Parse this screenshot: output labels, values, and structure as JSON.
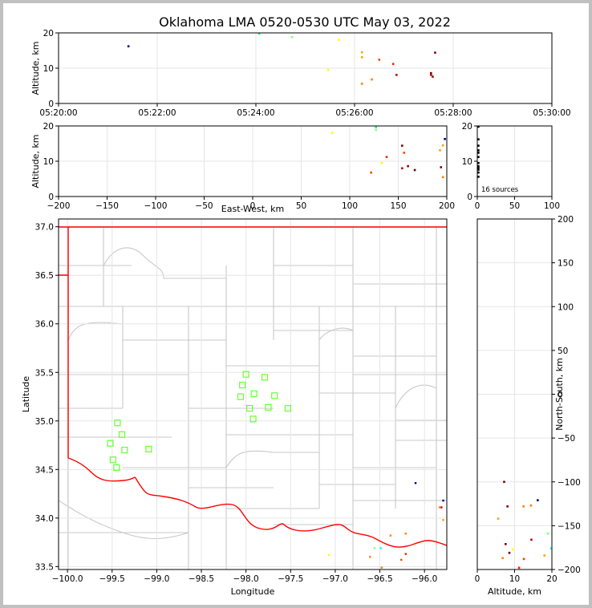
{
  "chart_data": [
    {
      "type": "scatter",
      "panel": "altitude-time",
      "title": "Oklahoma LMA 0520-0530 UTC May 03, 2022",
      "ylabel": "Altitude, km",
      "xlim": [
        "05:20:00",
        "05:30:00"
      ],
      "ylim": [
        0,
        20
      ],
      "xticks": [
        "05:20:00",
        "05:22:00",
        "05:24:00",
        "05:26:00",
        "05:28:00",
        "05:30:00"
      ],
      "yticks": [
        "0",
        "10",
        "20"
      ],
      "grid": true,
      "points": [
        {
          "x": "05:21:25",
          "y": 16.2,
          "color": "#000080"
        },
        {
          "x": "05:24:04",
          "y": 19.8,
          "color": "#00ff80"
        },
        {
          "x": "05:24:44",
          "y": 18.8,
          "color": "#80ff80"
        },
        {
          "x": "05:25:28",
          "y": 9.5,
          "color": "#ffff00"
        },
        {
          "x": "05:25:41",
          "y": 18.0,
          "color": "#ffff00"
        },
        {
          "x": "05:26:09",
          "y": 14.5,
          "color": "#ffa000"
        },
        {
          "x": "05:26:09",
          "y": 13.1,
          "color": "#ffa000"
        },
        {
          "x": "05:26:09",
          "y": 5.6,
          "color": "#ff8000"
        },
        {
          "x": "05:26:21",
          "y": 6.8,
          "color": "#ff8000"
        },
        {
          "x": "05:26:30",
          "y": 12.4,
          "color": "#ff4000"
        },
        {
          "x": "05:26:47",
          "y": 11.2,
          "color": "#ff2000"
        },
        {
          "x": "05:26:51",
          "y": 8.1,
          "color": "#c00000"
        },
        {
          "x": "05:27:33",
          "y": 8.6,
          "color": "#800000"
        },
        {
          "x": "05:27:33",
          "y": 8.1,
          "color": "#c00000"
        },
        {
          "x": "05:27:35",
          "y": 7.6,
          "color": "#a00000"
        },
        {
          "x": "05:27:38",
          "y": 14.4,
          "color": "#800000"
        }
      ]
    },
    {
      "type": "scatter",
      "panel": "altitude-eastwest",
      "xlabel": "East-West, km",
      "ylabel": "Altitude, km",
      "xlim": [
        -200,
        200
      ],
      "ylim": [
        0,
        20
      ],
      "xticks": [
        "−200",
        "−150",
        "−100",
        "−50",
        "0",
        "50",
        "100",
        "150",
        "200"
      ],
      "yticks": [
        "0",
        "10",
        "20"
      ],
      "grid": true,
      "points": [
        {
          "x": 82,
          "y": 18.0,
          "color": "#ffff00"
        },
        {
          "x": 127,
          "y": 19.7,
          "color": "#00ff80"
        },
        {
          "x": 127,
          "y": 18.9,
          "color": "#80ff80"
        },
        {
          "x": 122,
          "y": 6.8,
          "color": "#ff4000"
        },
        {
          "x": 133,
          "y": 9.5,
          "color": "#ffff00"
        },
        {
          "x": 138,
          "y": 11.2,
          "color": "#ff2000"
        },
        {
          "x": 154,
          "y": 14.4,
          "color": "#800000"
        },
        {
          "x": 156,
          "y": 12.4,
          "color": "#ff4000"
        },
        {
          "x": 154,
          "y": 8.0,
          "color": "#c00000"
        },
        {
          "x": 160,
          "y": 8.6,
          "color": "#800000"
        },
        {
          "x": 167,
          "y": 7.5,
          "color": "#600000"
        },
        {
          "x": 193,
          "y": 13.1,
          "color": "#ffa000"
        },
        {
          "x": 196,
          "y": 14.5,
          "color": "#ffa000"
        },
        {
          "x": 198,
          "y": 16.3,
          "color": "#000080"
        },
        {
          "x": 194,
          "y": 8.3,
          "color": "#800000"
        },
        {
          "x": 196,
          "y": 5.5,
          "color": "#ff8000"
        }
      ]
    },
    {
      "type": "histogram",
      "panel": "altitude-histogram",
      "xlim": [
        0,
        100
      ],
      "ylim": [
        0,
        20
      ],
      "xticks": [
        "0",
        "50",
        "100"
      ],
      "yticks": [
        "0",
        "10",
        "20"
      ],
      "note": "16 sources",
      "grid": true,
      "points": [
        {
          "x": 1,
          "y": 19.8,
          "color": "#000000"
        },
        {
          "x": 1,
          "y": 16.2,
          "color": "#000000"
        },
        {
          "x": 1,
          "y": 14.4,
          "color": "#000000"
        },
        {
          "x": 1,
          "y": 13.1,
          "color": "#000000"
        },
        {
          "x": 1,
          "y": 12.4,
          "color": "#000000"
        },
        {
          "x": 1,
          "y": 11.2,
          "color": "#000000"
        },
        {
          "x": 1,
          "y": 9.5,
          "color": "#000000"
        },
        {
          "x": 1,
          "y": 8.6,
          "color": "#000000"
        },
        {
          "x": 1,
          "y": 8.1,
          "color": "#000000"
        },
        {
          "x": 1,
          "y": 7.6,
          "color": "#000000"
        },
        {
          "x": 1,
          "y": 6.8,
          "color": "#000000"
        },
        {
          "x": 1,
          "y": 5.6,
          "color": "#000000"
        }
      ]
    },
    {
      "type": "map",
      "panel": "plan-view",
      "xlabel": "Longitude",
      "ylabel": "Latitude",
      "xlim": [
        -100.1,
        -95.75
      ],
      "ylim": [
        33.47,
        37.08
      ],
      "xticks": [
        "−100.0",
        "−99.5",
        "−99.0",
        "−98.5",
        "−98.0",
        "−97.5",
        "−97.0",
        "−96.5",
        "−96.0"
      ],
      "yticks": [
        "33.5",
        "34.0",
        "34.5",
        "35.0",
        "35.5",
        "36.0",
        "36.5",
        "37.0"
      ],
      "grid": true,
      "stations": [
        {
          "lon": -99.44,
          "lat": 34.98
        },
        {
          "lon": -99.39,
          "lat": 34.86
        },
        {
          "lon": -99.52,
          "lat": 34.77
        },
        {
          "lon": -99.36,
          "lat": 34.7
        },
        {
          "lon": -99.49,
          "lat": 34.6
        },
        {
          "lon": -99.45,
          "lat": 34.52
        },
        {
          "lon": -99.09,
          "lat": 34.71
        },
        {
          "lon": -98.0,
          "lat": 35.48
        },
        {
          "lon": -97.79,
          "lat": 35.45
        },
        {
          "lon": -98.04,
          "lat": 35.37
        },
        {
          "lon": -97.91,
          "lat": 35.28
        },
        {
          "lon": -98.06,
          "lat": 35.25
        },
        {
          "lon": -97.68,
          "lat": 35.26
        },
        {
          "lon": -97.96,
          "lat": 35.13
        },
        {
          "lon": -97.75,
          "lat": 35.14
        },
        {
          "lon": -97.53,
          "lat": 35.13
        },
        {
          "lon": -97.92,
          "lat": 35.02
        }
      ],
      "points": [
        {
          "lon": -96.1,
          "lat": 34.36,
          "color": "#000080"
        },
        {
          "lon": -95.79,
          "lat": 34.18,
          "color": "#000080"
        },
        {
          "lon": -95.81,
          "lat": 34.11,
          "color": "#c00000"
        },
        {
          "lon": -95.83,
          "lat": 34.11,
          "color": "#ff8000"
        },
        {
          "lon": -95.79,
          "lat": 33.98,
          "color": "#ffa000"
        },
        {
          "lon": -96.38,
          "lat": 33.82,
          "color": "#ff8000"
        },
        {
          "lon": -97.07,
          "lat": 33.62,
          "color": "#ffff00"
        },
        {
          "lon": -96.61,
          "lat": 33.6,
          "color": "#ff8000"
        },
        {
          "lon": -96.56,
          "lat": 33.69,
          "color": "#80ff80"
        },
        {
          "lon": -96.49,
          "lat": 33.69,
          "color": "#00ffff"
        },
        {
          "lon": -96.21,
          "lat": 33.63,
          "color": "#ff2000"
        },
        {
          "lon": -96.26,
          "lat": 33.57,
          "color": "#ff4000"
        },
        {
          "lon": -96.21,
          "lat": 33.84,
          "color": "#ff8000"
        },
        {
          "lon": -96.48,
          "lat": 33.49,
          "color": "#ff8000"
        }
      ]
    },
    {
      "type": "scatter",
      "panel": "northsouth-altitude",
      "xlabel": "Altitude, km",
      "ylabel": "North-South, km",
      "xlim": [
        0,
        20
      ],
      "ylim": [
        -200,
        200
      ],
      "xticks": [
        "0",
        "10",
        "20"
      ],
      "yticks": [
        "−200",
        "−150",
        "−100",
        "−50",
        "0",
        "50",
        "100",
        "150",
        "200"
      ],
      "grid": true,
      "points": [
        {
          "x": 7.2,
          "y": -100,
          "color": "#800000"
        },
        {
          "x": 16.2,
          "y": -121,
          "color": "#000080"
        },
        {
          "x": 8.1,
          "y": -128,
          "color": "#800000"
        },
        {
          "x": 12.4,
          "y": -128,
          "color": "#ff8000"
        },
        {
          "x": 14.4,
          "y": -127,
          "color": "#ff8000"
        },
        {
          "x": 5.6,
          "y": -142,
          "color": "#ffa000"
        },
        {
          "x": 18.9,
          "y": -159,
          "color": "#80ff80"
        },
        {
          "x": 14.5,
          "y": -166,
          "color": "#c00000"
        },
        {
          "x": 7.6,
          "y": -171,
          "color": "#800000"
        },
        {
          "x": 9.5,
          "y": -177,
          "color": "#ffff00"
        },
        {
          "x": 19.8,
          "y": -176,
          "color": "#00ffff"
        },
        {
          "x": 8.6,
          "y": -181,
          "color": "#600000"
        },
        {
          "x": 18.0,
          "y": -184,
          "color": "#ffa000"
        },
        {
          "x": 6.8,
          "y": -187,
          "color": "#ff8000"
        },
        {
          "x": 12.5,
          "y": -188,
          "color": "#ff4000"
        },
        {
          "x": 11.2,
          "y": -198,
          "color": "#ff2000"
        }
      ]
    }
  ]
}
